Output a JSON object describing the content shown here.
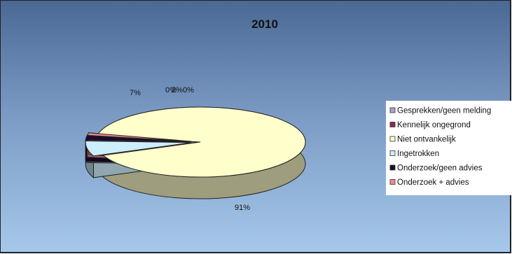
{
  "chart_data": {
    "type": "pie",
    "title": "2010",
    "categories": [
      "Gesprekken/geen melding",
      "Kennelijk ongegrond",
      "Niet ontvankelijk",
      "Ingetrokken",
      "Onderzoek/geen advies",
      "Onderzoek + advies"
    ],
    "values": [
      0,
      0,
      91,
      7,
      2,
      0
    ],
    "data_labels": [
      "0%",
      "",
      "91%",
      "7%",
      "2%",
      "0%"
    ],
    "colors": [
      "#a6a6cf",
      "#8a2a52",
      "#ffffcc",
      "#cdeefc",
      "#1a0a2e",
      "#f08a8a"
    ],
    "exploded": [
      "Ingetrokken",
      "Onderzoek/geen advies",
      "Onderzoek + advies"
    ],
    "style": "3d",
    "legend_position": "right"
  }
}
